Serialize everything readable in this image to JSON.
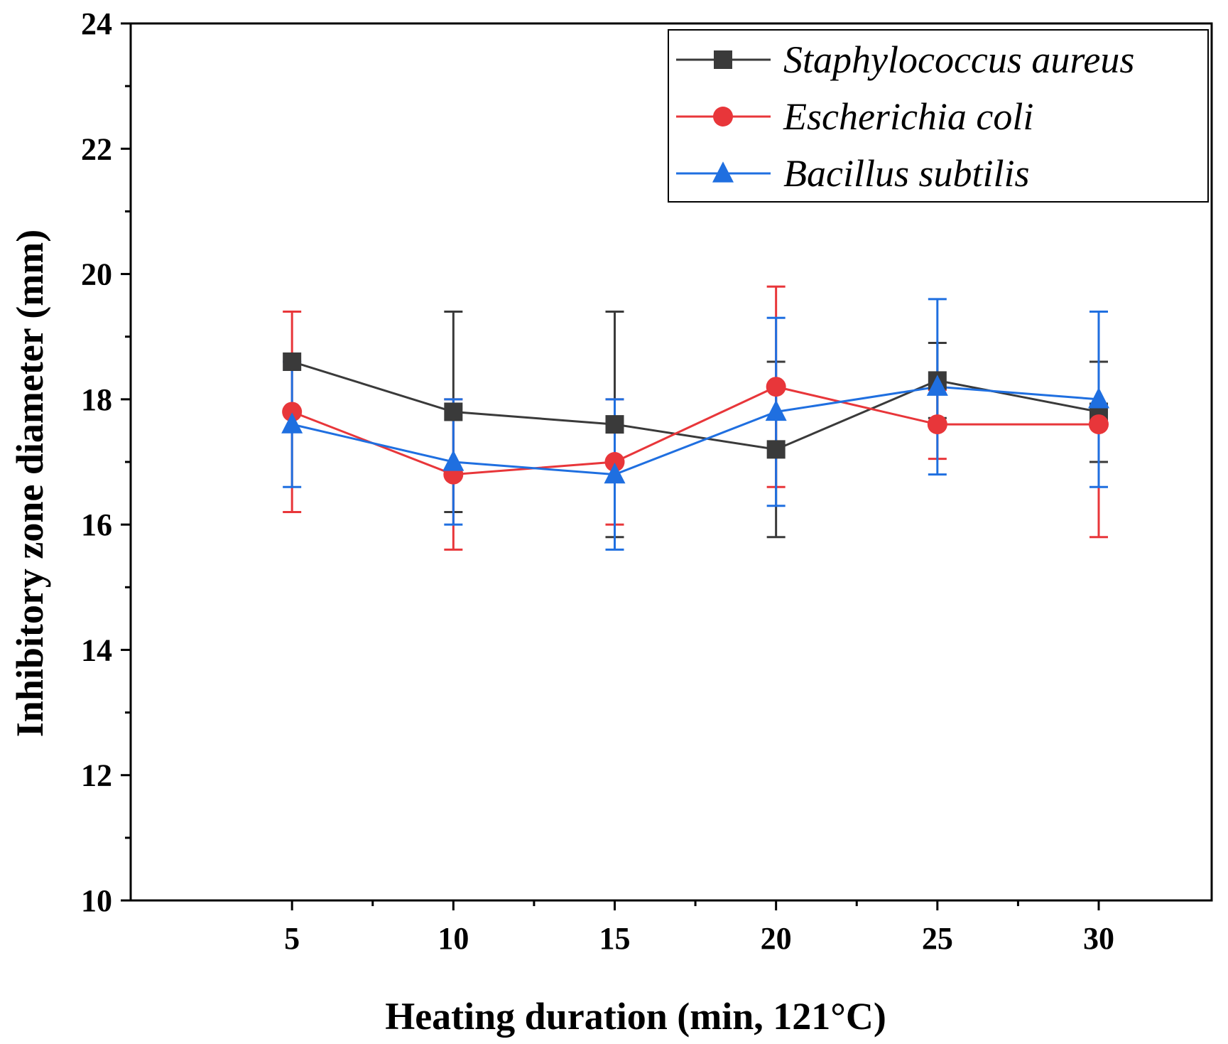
{
  "chart_data": {
    "type": "line",
    "title": "",
    "xlabel": "Heating duration (min, 121°C)",
    "ylabel": "Inhibitory zone diameter (mm)",
    "x": [
      5,
      10,
      15,
      20,
      25,
      30
    ],
    "x_tick_labels": [
      "5",
      "10",
      "15",
      "20",
      "25",
      "30"
    ],
    "xlim": [
      0,
      33.5
    ],
    "ylim": [
      10,
      24
    ],
    "y_ticks": [
      10,
      12,
      14,
      16,
      18,
      20,
      22,
      24
    ],
    "y_tick_labels": [
      "10",
      "12",
      "14",
      "16",
      "18",
      "20",
      "22",
      "24"
    ],
    "grid": false,
    "legend_position": "top-right",
    "series": [
      {
        "name": "Staphylococcus aureus",
        "color": "#3a3a3a",
        "marker": "square",
        "values": [
          18.6,
          17.8,
          17.6,
          17.2,
          18.3,
          17.8
        ],
        "errors": [
          null,
          1.6,
          1.8,
          1.4,
          0.6,
          0.8
        ]
      },
      {
        "name": "Escherichia coli",
        "color": "#e8363a",
        "marker": "circle",
        "values": [
          17.8,
          16.8,
          17.0,
          18.2,
          17.6,
          17.6
        ],
        "errors": [
          1.6,
          1.2,
          1.0,
          1.6,
          0.55,
          1.8
        ]
      },
      {
        "name": "Bacillus subtilis",
        "color": "#1f6fe0",
        "marker": "triangle",
        "values": [
          17.6,
          17.0,
          16.8,
          17.8,
          18.2,
          18.0
        ],
        "errors": [
          1.0,
          1.0,
          1.2,
          1.5,
          1.4,
          1.4
        ]
      }
    ]
  }
}
